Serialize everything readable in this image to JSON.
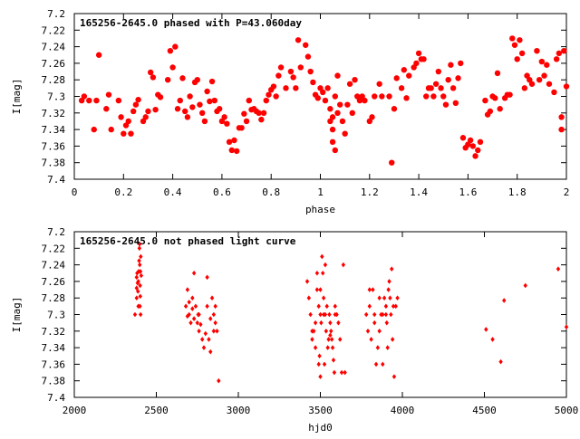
{
  "colors": {
    "marker": "#ff0000",
    "axis": "#000000",
    "background": "#ffffff"
  },
  "chart_data": [
    {
      "type": "scatter",
      "title": "165256-2645.0 phased with P=43.060day",
      "xlabel": "phase",
      "ylabel": "I[mag]",
      "xlim": [
        0,
        2
      ],
      "ylim": [
        7.4,
        7.2
      ],
      "y_inverted": true,
      "grid": false,
      "x_ticks": [
        "0",
        "0.2",
        "0.4",
        "0.6",
        "0.8",
        "1",
        "1.2",
        "1.4",
        "1.6",
        "1.8",
        "2"
      ],
      "x_tick_values": [
        0,
        0.2,
        0.4,
        0.6,
        0.8,
        1,
        1.2,
        1.4,
        1.6,
        1.8,
        2
      ],
      "y_ticks": [
        "7.2",
        "7.22",
        "7.24",
        "7.26",
        "7.28",
        "7.3",
        "7.32",
        "7.34",
        "7.36",
        "7.38",
        "7.4"
      ],
      "y_tick_values": [
        7.2,
        7.22,
        7.24,
        7.26,
        7.28,
        7.3,
        7.32,
        7.34,
        7.36,
        7.38,
        7.4
      ],
      "marker": "filled-circle-large",
      "points": [
        [
          0.03,
          7.305
        ],
        [
          0.04,
          7.3
        ],
        [
          0.06,
          7.305
        ],
        [
          0.08,
          7.34
        ],
        [
          0.09,
          7.305
        ],
        [
          0.1,
          7.25
        ],
        [
          0.13,
          7.315
        ],
        [
          0.14,
          7.298
        ],
        [
          0.15,
          7.34
        ],
        [
          0.18,
          7.305
        ],
        [
          0.19,
          7.325
        ],
        [
          0.2,
          7.345
        ],
        [
          0.21,
          7.335
        ],
        [
          0.22,
          7.33
        ],
        [
          0.23,
          7.345
        ],
        [
          0.24,
          7.318
        ],
        [
          0.25,
          7.31
        ],
        [
          0.26,
          7.304
        ],
        [
          0.28,
          7.33
        ],
        [
          0.29,
          7.325
        ],
        [
          0.3,
          7.318
        ],
        [
          0.31,
          7.271
        ],
        [
          0.32,
          7.277
        ],
        [
          0.33,
          7.316
        ],
        [
          0.34,
          7.298
        ],
        [
          0.35,
          7.301
        ],
        [
          0.38,
          7.28
        ],
        [
          0.39,
          7.245
        ],
        [
          0.4,
          7.265
        ],
        [
          0.41,
          7.24
        ],
        [
          0.42,
          7.315
        ],
        [
          0.43,
          7.305
        ],
        [
          0.44,
          7.278
        ],
        [
          0.45,
          7.318
        ],
        [
          0.46,
          7.325
        ],
        [
          0.47,
          7.3
        ],
        [
          0.48,
          7.313
        ],
        [
          0.49,
          7.283
        ],
        [
          0.5,
          7.28
        ],
        [
          0.51,
          7.31
        ],
        [
          0.52,
          7.32
        ],
        [
          0.53,
          7.33
        ],
        [
          0.54,
          7.294
        ],
        [
          0.55,
          7.306
        ],
        [
          0.56,
          7.282
        ],
        [
          0.57,
          7.305
        ],
        [
          0.58,
          7.318
        ],
        [
          0.59,
          7.315
        ],
        [
          0.6,
          7.33
        ],
        [
          0.61,
          7.325
        ],
        [
          0.62,
          7.333
        ],
        [
          0.63,
          7.355
        ],
        [
          0.64,
          7.365
        ],
        [
          0.65,
          7.353
        ],
        [
          0.66,
          7.366
        ],
        [
          0.67,
          7.338
        ],
        [
          0.68,
          7.338
        ],
        [
          0.69,
          7.321
        ],
        [
          0.7,
          7.33
        ],
        [
          0.71,
          7.305
        ],
        [
          0.72,
          7.316
        ],
        [
          0.73,
          7.315
        ],
        [
          0.74,
          7.318
        ],
        [
          0.75,
          7.32
        ],
        [
          0.76,
          7.328
        ],
        [
          0.77,
          7.32
        ],
        [
          0.78,
          7.305
        ],
        [
          0.79,
          7.298
        ],
        [
          0.8,
          7.292
        ],
        [
          0.81,
          7.288
        ],
        [
          0.82,
          7.3
        ],
        [
          0.83,
          7.275
        ],
        [
          0.84,
          7.265
        ],
        [
          0.86,
          7.29
        ],
        [
          0.88,
          7.27
        ],
        [
          0.89,
          7.277
        ],
        [
          0.9,
          7.29
        ],
        [
          0.91,
          7.232
        ],
        [
          0.92,
          7.265
        ],
        [
          0.94,
          7.238
        ],
        [
          0.95,
          7.252
        ],
        [
          0.96,
          7.27
        ],
        [
          0.97,
          7.283
        ],
        [
          0.98,
          7.298
        ],
        [
          0.99,
          7.302
        ],
        [
          1.0,
          7.29
        ],
        [
          1.01,
          7.295
        ],
        [
          1.02,
          7.305
        ],
        [
          1.03,
          7.29
        ],
        [
          1.04,
          7.315
        ],
        [
          1.04,
          7.33
        ],
        [
          1.05,
          7.325
        ],
        [
          1.05,
          7.34
        ],
        [
          1.05,
          7.355
        ],
        [
          1.06,
          7.365
        ],
        [
          1.06,
          7.3
        ],
        [
          1.07,
          7.275
        ],
        [
          1.07,
          7.32
        ],
        [
          1.08,
          7.31
        ],
        [
          1.09,
          7.33
        ],
        [
          1.1,
          7.345
        ],
        [
          1.11,
          7.31
        ],
        [
          1.12,
          7.285
        ],
        [
          1.13,
          7.32
        ],
        [
          1.14,
          7.28
        ],
        [
          1.15,
          7.3
        ],
        [
          1.16,
          7.305
        ],
        [
          1.17,
          7.3
        ],
        [
          1.18,
          7.305
        ],
        [
          1.2,
          7.33
        ],
        [
          1.21,
          7.325
        ],
        [
          1.22,
          7.3
        ],
        [
          1.24,
          7.285
        ],
        [
          1.25,
          7.3
        ],
        [
          1.28,
          7.3
        ],
        [
          1.29,
          7.38
        ],
        [
          1.3,
          7.315
        ],
        [
          1.31,
          7.278
        ],
        [
          1.33,
          7.29
        ],
        [
          1.34,
          7.268
        ],
        [
          1.35,
          7.302
        ],
        [
          1.36,
          7.275
        ],
        [
          1.38,
          7.265
        ],
        [
          1.39,
          7.26
        ],
        [
          1.4,
          7.248
        ],
        [
          1.41,
          7.255
        ],
        [
          1.42,
          7.255
        ],
        [
          1.43,
          7.3
        ],
        [
          1.44,
          7.29
        ],
        [
          1.45,
          7.29
        ],
        [
          1.46,
          7.3
        ],
        [
          1.47,
          7.285
        ],
        [
          1.48,
          7.27
        ],
        [
          1.49,
          7.29
        ],
        [
          1.5,
          7.3
        ],
        [
          1.51,
          7.31
        ],
        [
          1.52,
          7.28
        ],
        [
          1.53,
          7.262
        ],
        [
          1.54,
          7.29
        ],
        [
          1.55,
          7.308
        ],
        [
          1.56,
          7.278
        ],
        [
          1.57,
          7.26
        ],
        [
          1.58,
          7.35
        ],
        [
          1.59,
          7.362
        ],
        [
          1.6,
          7.358
        ],
        [
          1.61,
          7.353
        ],
        [
          1.62,
          7.36
        ],
        [
          1.63,
          7.372
        ],
        [
          1.64,
          7.365
        ],
        [
          1.65,
          7.355
        ],
        [
          1.67,
          7.305
        ],
        [
          1.68,
          7.322
        ],
        [
          1.69,
          7.318
        ],
        [
          1.7,
          7.3
        ],
        [
          1.71,
          7.302
        ],
        [
          1.72,
          7.272
        ],
        [
          1.73,
          7.315
        ],
        [
          1.75,
          7.302
        ],
        [
          1.76,
          7.298
        ],
        [
          1.77,
          7.298
        ],
        [
          1.78,
          7.23
        ],
        [
          1.79,
          7.238
        ],
        [
          1.8,
          7.255
        ],
        [
          1.81,
          7.232
        ],
        [
          1.82,
          7.248
        ],
        [
          1.83,
          7.29
        ],
        [
          1.84,
          7.275
        ],
        [
          1.85,
          7.28
        ],
        [
          1.86,
          7.285
        ],
        [
          1.88,
          7.245
        ],
        [
          1.89,
          7.28
        ],
        [
          1.9,
          7.258
        ],
        [
          1.91,
          7.275
        ],
        [
          1.92,
          7.262
        ],
        [
          1.93,
          7.285
        ],
        [
          1.95,
          7.295
        ],
        [
          1.96,
          7.255
        ],
        [
          1.97,
          7.248
        ],
        [
          1.98,
          7.34
        ],
        [
          1.98,
          7.325
        ],
        [
          1.99,
          7.245
        ],
        [
          2.0,
          7.288
        ]
      ]
    },
    {
      "type": "scatter",
      "title": "165256-2645.0 not phased light curve",
      "xlabel": "hjd0",
      "ylabel": "I[mag]",
      "xlim": [
        2000,
        5000
      ],
      "ylim": [
        7.4,
        7.2
      ],
      "y_inverted": true,
      "grid": false,
      "x_ticks": [
        "2000",
        "2500",
        "3000",
        "3500",
        "4000",
        "4500",
        "5000"
      ],
      "x_tick_values": [
        2000,
        2500,
        3000,
        3500,
        4000,
        4500,
        5000
      ],
      "y_ticks": [
        "7.2",
        "7.22",
        "7.24",
        "7.26",
        "7.28",
        "7.3",
        "7.32",
        "7.34",
        "7.36",
        "7.38",
        "7.4"
      ],
      "y_tick_values": [
        7.2,
        7.22,
        7.24,
        7.26,
        7.28,
        7.3,
        7.32,
        7.34,
        7.36,
        7.38,
        7.4
      ],
      "marker": "filled-diamond-small",
      "points": [
        [
          2370,
          7.3
        ],
        [
          2380,
          7.268
        ],
        [
          2380,
          7.255
        ],
        [
          2383,
          7.25
        ],
        [
          2386,
          7.262
        ],
        [
          2388,
          7.272
        ],
        [
          2390,
          7.26
        ],
        [
          2392,
          7.248
        ],
        [
          2395,
          7.235
        ],
        [
          2397,
          7.22
        ],
        [
          2398,
          7.215
        ],
        [
          2399,
          7.24
        ],
        [
          2400,
          7.29
        ],
        [
          2401,
          7.265
        ],
        [
          2402,
          7.278
        ],
        [
          2403,
          7.248
        ],
        [
          2404,
          7.3
        ],
        [
          2405,
          7.23
        ],
        [
          2408,
          7.253
        ],
        [
          2380,
          7.28
        ],
        [
          2390,
          7.29
        ],
        [
          2680,
          7.29
        ],
        [
          2690,
          7.302
        ],
        [
          2700,
          7.3
        ],
        [
          2710,
          7.31
        ],
        [
          2720,
          7.293
        ],
        [
          2730,
          7.305
        ],
        [
          2740,
          7.29
        ],
        [
          2750,
          7.31
        ],
        [
          2755,
          7.3
        ],
        [
          2760,
          7.32
        ],
        [
          2770,
          7.312
        ],
        [
          2780,
          7.33
        ],
        [
          2790,
          7.34
        ],
        [
          2800,
          7.323
        ],
        [
          2810,
          7.29
        ],
        [
          2820,
          7.33
        ],
        [
          2830,
          7.305
        ],
        [
          2840,
          7.28
        ],
        [
          2850,
          7.3
        ],
        [
          2860,
          7.31
        ],
        [
          2870,
          7.32
        ],
        [
          2880,
          7.38
        ],
        [
          2690,
          7.27
        ],
        [
          2730,
          7.25
        ],
        [
          2720,
          7.28
        ],
        [
          2700,
          7.285
        ],
        [
          2760,
          7.3
        ],
        [
          2810,
          7.255
        ],
        [
          2830,
          7.345
        ],
        [
          2850,
          7.32
        ],
        [
          2860,
          7.29
        ],
        [
          3420,
          7.26
        ],
        [
          3430,
          7.28
        ],
        [
          3440,
          7.3
        ],
        [
          3450,
          7.33
        ],
        [
          3460,
          7.32
        ],
        [
          3470,
          7.34
        ],
        [
          3480,
          7.27
        ],
        [
          3490,
          7.29
        ],
        [
          3495,
          7.35
        ],
        [
          3500,
          7.3
        ],
        [
          3505,
          7.31
        ],
        [
          3510,
          7.23
        ],
        [
          3515,
          7.25
        ],
        [
          3520,
          7.28
        ],
        [
          3525,
          7.36
        ],
        [
          3530,
          7.3
        ],
        [
          3535,
          7.32
        ],
        [
          3540,
          7.29
        ],
        [
          3545,
          7.34
        ],
        [
          3550,
          7.33
        ],
        [
          3555,
          7.3
        ],
        [
          3560,
          7.31
        ],
        [
          3565,
          7.32
        ],
        [
          3570,
          7.33
        ],
        [
          3575,
          7.34
        ],
        [
          3580,
          7.355
        ],
        [
          3585,
          7.37
        ],
        [
          3590,
          7.29
        ],
        [
          3600,
          7.3
        ],
        [
          3610,
          7.31
        ],
        [
          3620,
          7.33
        ],
        [
          3630,
          7.37
        ],
        [
          3640,
          7.24
        ],
        [
          3650,
          7.37
        ],
        [
          3480,
          7.25
        ],
        [
          3500,
          7.27
        ],
        [
          3520,
          7.3
        ],
        [
          3560,
          7.325
        ],
        [
          3590,
          7.3
        ],
        [
          3450,
          7.32
        ],
        [
          3470,
          7.31
        ],
        [
          3490,
          7.36
        ],
        [
          3500,
          7.375
        ],
        [
          3530,
          7.24
        ],
        [
          3780,
          7.3
        ],
        [
          3790,
          7.32
        ],
        [
          3800,
          7.29
        ],
        [
          3810,
          7.33
        ],
        [
          3820,
          7.27
        ],
        [
          3830,
          7.3
        ],
        [
          3840,
          7.36
        ],
        [
          3850,
          7.34
        ],
        [
          3860,
          7.28
        ],
        [
          3870,
          7.3
        ],
        [
          3880,
          7.36
        ],
        [
          3890,
          7.28
        ],
        [
          3900,
          7.3
        ],
        [
          3905,
          7.31
        ],
        [
          3910,
          7.34
        ],
        [
          3915,
          7.27
        ],
        [
          3920,
          7.26
        ],
        [
          3925,
          7.28
        ],
        [
          3930,
          7.3
        ],
        [
          3935,
          7.245
        ],
        [
          3940,
          7.33
        ],
        [
          3945,
          7.29
        ],
        [
          3950,
          7.375
        ],
        [
          3960,
          7.29
        ],
        [
          3970,
          7.28
        ],
        [
          3800,
          7.27
        ],
        [
          3830,
          7.31
        ],
        [
          3860,
          7.32
        ],
        [
          3880,
          7.3
        ],
        [
          3900,
          7.29
        ],
        [
          4510,
          7.318
        ],
        [
          4550,
          7.33
        ],
        [
          4600,
          7.357
        ],
        [
          4620,
          7.283
        ],
        [
          4750,
          7.265
        ],
        [
          4950,
          7.245
        ],
        [
          5000,
          7.315
        ]
      ]
    }
  ]
}
